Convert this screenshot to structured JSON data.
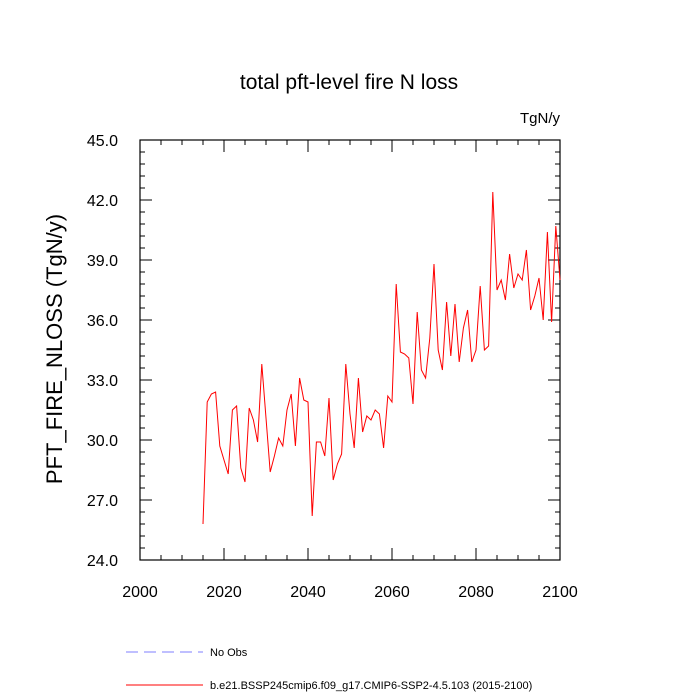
{
  "chart_data": {
    "type": "line",
    "title": "total pft-level fire N loss",
    "units": "TgN/y",
    "xlabel": "",
    "ylabel": "PFT_FIRE_NLOSS  (TgN/y)",
    "xlim": [
      2000,
      2100
    ],
    "ylim": [
      24.0,
      45.0
    ],
    "x_ticks": [
      2000,
      2020,
      2040,
      2060,
      2080,
      2100
    ],
    "x_tick_labels": [
      "2000",
      "2020",
      "2040",
      "2060",
      "2080",
      "2100"
    ],
    "y_ticks": [
      24.0,
      27.0,
      30.0,
      33.0,
      36.0,
      39.0,
      42.0,
      45.0
    ],
    "y_tick_labels": [
      "24.0",
      "27.0",
      "30.0",
      "33.0",
      "36.0",
      "39.0",
      "42.0",
      "45.0"
    ],
    "series": [
      {
        "name": "b.e21.BSSP245cmip6.f09_g17.CMIP6-SSP2-4.5.103 (2015-2100)",
        "color": "#ff0000",
        "style": "solid",
        "x": [
          2015,
          2016,
          2017,
          2018,
          2019,
          2020,
          2021,
          2022,
          2023,
          2024,
          2025,
          2026,
          2027,
          2028,
          2029,
          2030,
          2031,
          2032,
          2033,
          2034,
          2035,
          2036,
          2037,
          2038,
          2039,
          2040,
          2041,
          2042,
          2043,
          2044,
          2045,
          2046,
          2047,
          2048,
          2049,
          2050,
          2051,
          2052,
          2053,
          2054,
          2055,
          2056,
          2057,
          2058,
          2059,
          2060,
          2061,
          2062,
          2063,
          2064,
          2065,
          2066,
          2067,
          2068,
          2069,
          2070,
          2071,
          2072,
          2073,
          2074,
          2075,
          2076,
          2077,
          2078,
          2079,
          2080,
          2081,
          2082,
          2083,
          2084,
          2085,
          2086,
          2087,
          2088,
          2089,
          2090,
          2091,
          2092,
          2093,
          2094,
          2095,
          2096,
          2097,
          2098,
          2099,
          2100
        ],
        "values": [
          25.8,
          31.9,
          32.3,
          32.4,
          29.7,
          29.0,
          28.3,
          31.5,
          31.7,
          28.6,
          27.9,
          31.6,
          31.0,
          29.9,
          33.8,
          31.1,
          28.4,
          29.2,
          30.1,
          29.7,
          31.5,
          32.3,
          29.7,
          33.1,
          32.0,
          31.9,
          26.2,
          29.9,
          29.9,
          29.2,
          32.1,
          28.0,
          28.8,
          29.3,
          33.8,
          31.3,
          29.6,
          33.1,
          30.4,
          31.2,
          31.0,
          31.5,
          31.3,
          29.6,
          32.2,
          31.9,
          37.8,
          34.4,
          34.3,
          34.1,
          31.8,
          36.4,
          33.5,
          33.1,
          35.1,
          38.8,
          34.5,
          33.5,
          36.9,
          34.2,
          36.8,
          33.9,
          35.6,
          36.5,
          33.9,
          34.5,
          37.7,
          34.5,
          34.7,
          42.4,
          37.5,
          38.0,
          37.0,
          39.3,
          37.6,
          38.3,
          38.0,
          39.5,
          36.5,
          37.2,
          38.1,
          36.0,
          40.4,
          35.9,
          40.7,
          38.0
        ]
      },
      {
        "name": "No Obs",
        "color": "#7f7fff",
        "style": "dashed",
        "x": [],
        "values": []
      }
    ],
    "legend": [
      {
        "label": "No Obs",
        "color": "#7f7fff",
        "style": "dashed"
      },
      {
        "label": "b.e21.BSSP245cmip6.f09_g17.CMIP6-SSP2-4.5.103 (2015-2100)",
        "color": "#ff0000",
        "style": "solid"
      }
    ],
    "legend_position": "bottom",
    "grid": false
  }
}
